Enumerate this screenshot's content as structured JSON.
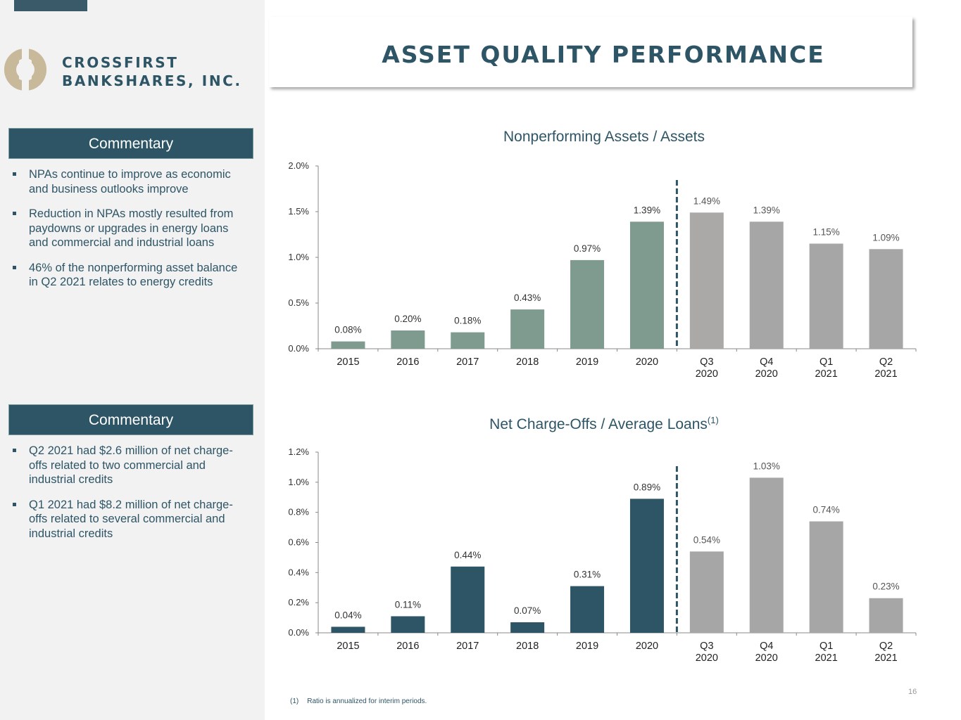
{
  "brand": {
    "line1": "CROSSFIRST",
    "line2": "BANKSHARES, INC."
  },
  "page_title": "ASSET QUALITY PERFORMANCE",
  "commentary": [
    {
      "heading": "Commentary",
      "bullets": [
        "NPAs continue to improve as economic and business outlooks improve",
        "Reduction in NPAs mostly resulted from paydowns or upgrades in energy loans and commercial and industrial loans",
        "46% of the nonperforming asset balance in Q2 2021 relates to energy credits"
      ]
    },
    {
      "heading": "Commentary",
      "bullets": [
        "Q2 2021 had $2.6 million of net charge-offs related to two commercial and industrial credits",
        "Q1 2021 had $8.2 million of net charge-offs related to several commercial and industrial credits"
      ]
    }
  ],
  "chart_data": [
    {
      "type": "bar",
      "title": "Nonperforming Assets / Assets",
      "categories": [
        [
          "2015"
        ],
        [
          "2016"
        ],
        [
          "2017"
        ],
        [
          "2018"
        ],
        [
          "2019"
        ],
        [
          "2020"
        ],
        [
          "Q3",
          "2020"
        ],
        [
          "Q4",
          "2020"
        ],
        [
          "Q1",
          "2021"
        ],
        [
          "Q2",
          "2021"
        ]
      ],
      "values": [
        0.08,
        0.2,
        0.18,
        0.43,
        0.97,
        1.39,
        1.49,
        1.39,
        1.15,
        1.09
      ],
      "labels": [
        "0.08%",
        "0.20%",
        "0.18%",
        "0.43%",
        "0.97%",
        "1.39%",
        "1.49%",
        "1.39%",
        "1.15%",
        "1.09%"
      ],
      "bar_colors": [
        "#7f9a8e",
        "#7f9a8e",
        "#7f9a8e",
        "#7f9a8e",
        "#7f9a8e",
        "#7f9a8e",
        "#aba8a8",
        "#a6a6a6",
        "#a6a6a6",
        "#a6a6a6"
      ],
      "yticks": [
        "0.0%",
        "0.5%",
        "1.0%",
        "1.5%",
        "2.0%"
      ],
      "ylim": [
        0,
        2.0
      ],
      "divider_after_index": 5,
      "grid": false
    },
    {
      "type": "bar",
      "title": "Net Charge-Offs / Average Loans",
      "title_sup": "(1)",
      "categories": [
        [
          "2015"
        ],
        [
          "2016"
        ],
        [
          "2017"
        ],
        [
          "2018"
        ],
        [
          "2019"
        ],
        [
          "2020"
        ],
        [
          "Q3",
          "2020"
        ],
        [
          "Q4",
          "2020"
        ],
        [
          "Q1",
          "2021"
        ],
        [
          "Q2",
          "2021"
        ]
      ],
      "values": [
        0.04,
        0.11,
        0.44,
        0.07,
        0.31,
        0.89,
        0.54,
        1.03,
        0.74,
        0.23
      ],
      "labels": [
        "0.04%",
        "0.11%",
        "0.44%",
        "0.07%",
        "0.31%",
        "0.89%",
        "0.54%",
        "1.03%",
        "0.74%",
        "0.23%"
      ],
      "bar_colors": [
        "#2e5566",
        "#2e5566",
        "#2e5566",
        "#2e5566",
        "#2e5566",
        "#2e5566",
        "#a6a6a6",
        "#a6a6a6",
        "#a6a6a6",
        "#a6a6a6"
      ],
      "yticks": [
        "0.0%",
        "0.2%",
        "0.4%",
        "0.6%",
        "0.8%",
        "1.0%",
        "1.2%"
      ],
      "ylim": [
        0,
        1.2
      ],
      "divider_after_index": 5,
      "grid": false
    }
  ],
  "footnote": {
    "number": "(1)",
    "text": "Ratio is annualized for interim periods."
  },
  "page_number": "16"
}
